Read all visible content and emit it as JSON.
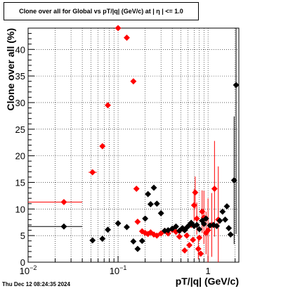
{
  "chart_data": {
    "type": "scatter",
    "title": "Clone  over all for Global vs pT/|q| (GeV/c) at |  η  | <= 1.0",
    "xlabel": "pT/|q| (GeV/c)",
    "ylabel": "Clone  over all (%)",
    "xscale": "log",
    "xlim": [
      0.01,
      2.2
    ],
    "ylim": [
      0,
      44
    ],
    "grid": true,
    "x_ticks": [
      {
        "value": 0.01,
        "base": "10",
        "exp": "−2"
      },
      {
        "value": 0.1,
        "base": "10",
        "exp": "−1"
      },
      {
        "value": 1,
        "base": "1",
        "exp": ""
      }
    ],
    "y_ticks": [
      0,
      5,
      10,
      15,
      20,
      25,
      30,
      35,
      40
    ],
    "series": [
      {
        "color": "#ff0000",
        "points": [
          {
            "x": 0.025,
            "y": 11.3,
            "xlo": 0.01,
            "xhi": 0.04
          },
          {
            "x": 0.052,
            "y": 16.9,
            "xlo": 0.047,
            "xhi": 0.058
          },
          {
            "x": 0.067,
            "y": 21.8
          },
          {
            "x": 0.077,
            "y": 29.5
          },
          {
            "x": 0.1,
            "y": 44.0
          },
          {
            "x": 0.125,
            "y": 42.2
          },
          {
            "x": 0.148,
            "y": 34.0
          },
          {
            "x": 0.16,
            "y": 13.8
          },
          {
            "x": 0.165,
            "y": 7.6
          },
          {
            "x": 0.185,
            "y": 5.8
          },
          {
            "x": 0.2,
            "y": 5.5
          },
          {
            "x": 0.215,
            "y": 5.3
          },
          {
            "x": 0.23,
            "y": 5.6
          },
          {
            "x": 0.25,
            "y": 5.2
          },
          {
            "x": 0.27,
            "y": 5.0
          },
          {
            "x": 0.3,
            "y": 5.4
          },
          {
            "x": 0.33,
            "y": 5.9
          },
          {
            "x": 0.36,
            "y": 5.4
          },
          {
            "x": 0.4,
            "y": 6.1
          },
          {
            "x": 0.44,
            "y": 5.7
          },
          {
            "x": 0.48,
            "y": 4.8
          },
          {
            "x": 0.52,
            "y": 6.3
          },
          {
            "x": 0.55,
            "y": 2.2
          },
          {
            "x": 0.58,
            "y": 5.0
          },
          {
            "x": 0.62,
            "y": 3.2
          },
          {
            "x": 0.65,
            "y": 7.0
          },
          {
            "x": 0.68,
            "y": 4.2
          },
          {
            "x": 0.7,
            "y": 10.7,
            "elo": 3.0,
            "ehi": 3.0
          },
          {
            "x": 0.72,
            "y": 13.1,
            "elo": 3.0,
            "ehi": 3.0
          },
          {
            "x": 0.75,
            "y": 8.2,
            "elo": 3.0,
            "ehi": 3.0
          },
          {
            "x": 0.78,
            "y": 2.5,
            "elo": 2.0,
            "ehi": 2.0
          },
          {
            "x": 0.8,
            "y": 4.6
          },
          {
            "x": 0.83,
            "y": 1.6
          },
          {
            "x": 0.86,
            "y": 9.5,
            "elo": 4.0,
            "ehi": 4.0
          },
          {
            "x": 0.9,
            "y": 8.4,
            "elo": 5.0,
            "ehi": 5.0
          },
          {
            "x": 0.95,
            "y": 5.5,
            "elo": 4.0,
            "ehi": 4.0
          },
          {
            "x": 1.0,
            "y": 6.0,
            "elo": 6.0,
            "ehi": 6.0
          },
          {
            "x": 1.1,
            "y": 7.0,
            "elo": 6.0,
            "ehi": 6.0
          },
          {
            "x": 1.18,
            "y": 13.8,
            "elo": 9.0,
            "ehi": 9.0
          },
          {
            "x": 1.3,
            "y": 8.0,
            "elo": 10.0,
            "ehi": 10.0
          }
        ]
      },
      {
        "color": "#000000",
        "points": [
          {
            "x": 0.025,
            "y": 6.7,
            "xlo": 0.01,
            "xhi": 0.04
          },
          {
            "x": 0.052,
            "y": 4.1
          },
          {
            "x": 0.067,
            "y": 4.4
          },
          {
            "x": 0.077,
            "y": 6.1
          },
          {
            "x": 0.1,
            "y": 7.3
          },
          {
            "x": 0.125,
            "y": 6.6
          },
          {
            "x": 0.148,
            "y": 3.9
          },
          {
            "x": 0.165,
            "y": 2.5
          },
          {
            "x": 0.185,
            "y": 4.0
          },
          {
            "x": 0.2,
            "y": 8.2
          },
          {
            "x": 0.215,
            "y": 12.8
          },
          {
            "x": 0.23,
            "y": 10.9
          },
          {
            "x": 0.25,
            "y": 14.0
          },
          {
            "x": 0.27,
            "y": 11.0
          },
          {
            "x": 0.3,
            "y": 9.2
          },
          {
            "x": 0.33,
            "y": 5.9
          },
          {
            "x": 0.36,
            "y": 6.0
          },
          {
            "x": 0.4,
            "y": 6.3
          },
          {
            "x": 0.44,
            "y": 6.7
          },
          {
            "x": 0.48,
            "y": 5.9
          },
          {
            "x": 0.52,
            "y": 6.4
          },
          {
            "x": 0.55,
            "y": 6.0
          },
          {
            "x": 0.58,
            "y": 6.5
          },
          {
            "x": 0.62,
            "y": 7.0
          },
          {
            "x": 0.65,
            "y": 7.4
          },
          {
            "x": 0.7,
            "y": 6.8
          },
          {
            "x": 0.75,
            "y": 7.0
          },
          {
            "x": 0.8,
            "y": 6.2
          },
          {
            "x": 0.86,
            "y": 7.8
          },
          {
            "x": 0.9,
            "y": 7.2
          },
          {
            "x": 0.95,
            "y": 8.2
          },
          {
            "x": 1.05,
            "y": 6.9
          },
          {
            "x": 1.15,
            "y": 7.0
          },
          {
            "x": 1.25,
            "y": 6.8
          },
          {
            "x": 1.35,
            "y": 7.8
          },
          {
            "x": 1.45,
            "y": 9.5
          },
          {
            "x": 1.55,
            "y": 8.0
          },
          {
            "x": 1.62,
            "y": 10.5
          },
          {
            "x": 1.7,
            "y": 6.4
          },
          {
            "x": 1.78,
            "y": 5.2
          },
          {
            "x": 1.95,
            "y": 15.4,
            "elo": 12.0,
            "ehi": 12.0
          },
          {
            "x": 2.05,
            "y": 33.3,
            "elo": 28.0,
            "ehi": 12.0
          }
        ]
      }
    ]
  },
  "footer": {
    "date": "Thu Dec 12 08:24:35 2024"
  }
}
